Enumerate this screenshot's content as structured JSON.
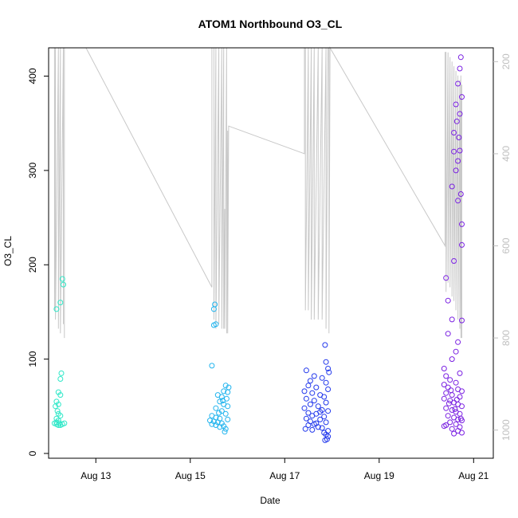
{
  "chart_data": {
    "type": "scatter",
    "title": "ATOM1 Northbound O3_CL",
    "xlabel": "Date",
    "ylabel": "O3_CL",
    "x_ticks": [
      "Aug 13",
      "Aug 15",
      "Aug 17",
      "Aug 19",
      "Aug 21"
    ],
    "xlim": [
      "2024-08-12",
      "2024-08-21"
    ],
    "y_ticks": [
      0,
      100,
      200,
      300,
      400
    ],
    "ylim": [
      0,
      430
    ],
    "y2_ticks": [
      200,
      400,
      600,
      800,
      1000
    ],
    "y2lim": [
      1030,
      170
    ],
    "y2_reversed": true,
    "grid": false,
    "legend": "none",
    "colors": {
      "cluster_1": "#2ee8c8",
      "cluster_2": "#21b4ee",
      "cluster_3": "#2238ec",
      "cluster_4": "#7a20e2",
      "secondary_line": "#c8c8c8"
    },
    "series": [
      {
        "values": [
          [
            "2024-08-12T04:00",
            153
          ],
          [
            "2024-08-12T06:00",
            160
          ],
          [
            "2024-08-12T07:00",
            185
          ],
          [
            "2024-08-12T07:30",
            179
          ],
          [
            "2024-08-12T06:30",
            85
          ],
          [
            "2024-08-12T06:00",
            79
          ],
          [
            "2024-08-12T05:00",
            65
          ],
          [
            "2024-08-12T06:00",
            62
          ],
          [
            "2024-08-12T04:00",
            55
          ],
          [
            "2024-08-12T05:00",
            52
          ],
          [
            "2024-08-12T03:30",
            50
          ],
          [
            "2024-08-12T04:30",
            45
          ],
          [
            "2024-08-12T05:00",
            42
          ],
          [
            "2024-08-12T06:00",
            40
          ],
          [
            "2024-08-12T04:00",
            37
          ],
          [
            "2024-08-12T05:00",
            35
          ],
          [
            "2024-08-12T04:00",
            33
          ],
          [
            "2024-08-12T05:30",
            32
          ],
          [
            "2024-08-12T04:00",
            31
          ],
          [
            "2024-08-12T06:00",
            30
          ],
          [
            "2024-08-12T07:00",
            31
          ],
          [
            "2024-08-12T08:00",
            32
          ],
          [
            "2024-08-12T03:00",
            32
          ],
          [
            "2024-08-12T05:00",
            30
          ]
        ]
      },
      {
        "values": [
          [
            "2024-08-15T12:30",
            158
          ],
          [
            "2024-08-15T12:00",
            153
          ],
          [
            "2024-08-15T13:00",
            137
          ],
          [
            "2024-08-15T12:00",
            136
          ],
          [
            "2024-08-15T11:00",
            93
          ],
          [
            "2024-08-15T18:00",
            72
          ],
          [
            "2024-08-15T19:30",
            70
          ],
          [
            "2024-08-15T17:00",
            66
          ],
          [
            "2024-08-15T19:00",
            65
          ],
          [
            "2024-08-15T14:00",
            62
          ],
          [
            "2024-08-15T16:00",
            60
          ],
          [
            "2024-08-15T18:30",
            58
          ],
          [
            "2024-08-15T15:00",
            55
          ],
          [
            "2024-08-15T17:00",
            52
          ],
          [
            "2024-08-15T19:00",
            50
          ],
          [
            "2024-08-15T13:00",
            48
          ],
          [
            "2024-08-15T16:00",
            45
          ],
          [
            "2024-08-15T18:00",
            42
          ],
          [
            "2024-08-15T11:00",
            40
          ],
          [
            "2024-08-15T13:00",
            38
          ],
          [
            "2024-08-15T15:00",
            37
          ],
          [
            "2024-08-15T19:00",
            36
          ],
          [
            "2024-08-15T10:00",
            35
          ],
          [
            "2024-08-15T12:00",
            34
          ],
          [
            "2024-08-15T14:00",
            33
          ],
          [
            "2024-08-15T16:00",
            32
          ],
          [
            "2024-08-15T11:00",
            31
          ],
          [
            "2024-08-15T13:00",
            30
          ],
          [
            "2024-08-15T17:00",
            29
          ],
          [
            "2024-08-15T18:00",
            26
          ],
          [
            "2024-08-15T17:30",
            23
          ],
          [
            "2024-08-15T15:00",
            28
          ],
          [
            "2024-08-15T14:30",
            43
          ],
          [
            "2024-08-15T16:30",
            56
          ]
        ]
      },
      {
        "values": [
          [
            "2024-08-17T20:30",
            115
          ],
          [
            "2024-08-17T21:00",
            97
          ],
          [
            "2024-08-17T22:00",
            90
          ],
          [
            "2024-08-17T11:00",
            88
          ],
          [
            "2024-08-17T22:30",
            86
          ],
          [
            "2024-08-17T15:00",
            82
          ],
          [
            "2024-08-17T19:00",
            80
          ],
          [
            "2024-08-17T13:00",
            77
          ],
          [
            "2024-08-17T21:00",
            75
          ],
          [
            "2024-08-17T12:00",
            72
          ],
          [
            "2024-08-17T16:00",
            70
          ],
          [
            "2024-08-17T22:00",
            68
          ],
          [
            "2024-08-17T10:00",
            66
          ],
          [
            "2024-08-17T14:00",
            64
          ],
          [
            "2024-08-17T18:00",
            62
          ],
          [
            "2024-08-17T20:00",
            60
          ],
          [
            "2024-08-17T11:00",
            58
          ],
          [
            "2024-08-17T15:00",
            56
          ],
          [
            "2024-08-17T21:00",
            54
          ],
          [
            "2024-08-17T13:00",
            52
          ],
          [
            "2024-08-17T17:00",
            50
          ],
          [
            "2024-08-17T10:00",
            48
          ],
          [
            "2024-08-17T19:00",
            46
          ],
          [
            "2024-08-17T22:00",
            45
          ],
          [
            "2024-08-17T12:00",
            43
          ],
          [
            "2024-08-17T16:00",
            42
          ],
          [
            "2024-08-17T14:00",
            40
          ],
          [
            "2024-08-17T20:00",
            39
          ],
          [
            "2024-08-17T11:00",
            37
          ],
          [
            "2024-08-17T18:00",
            36
          ],
          [
            "2024-08-17T13:00",
            34
          ],
          [
            "2024-08-17T21:00",
            33
          ],
          [
            "2024-08-17T15:00",
            31
          ],
          [
            "2024-08-17T12:00",
            30
          ],
          [
            "2024-08-17T17:00",
            28
          ],
          [
            "2024-08-17T19:00",
            27
          ],
          [
            "2024-08-17T14:00",
            25
          ],
          [
            "2024-08-17T22:00",
            24
          ],
          [
            "2024-08-17T20:00",
            22
          ],
          [
            "2024-08-17T21:00",
            20
          ],
          [
            "2024-08-17T22:00",
            18
          ],
          [
            "2024-08-17T21:30",
            15
          ],
          [
            "2024-08-17T20:30",
            14
          ],
          [
            "2024-08-17T16:00",
            32
          ],
          [
            "2024-08-17T18:00",
            44
          ],
          [
            "2024-08-17T10:30",
            26
          ]
        ]
      },
      {
        "values": [
          [
            "2024-08-20T17:30",
            420
          ],
          [
            "2024-08-20T17:00",
            408
          ],
          [
            "2024-08-20T16:00",
            392
          ],
          [
            "2024-08-20T15:00",
            370
          ],
          [
            "2024-08-20T18:00",
            378
          ],
          [
            "2024-08-20T17:00",
            360
          ],
          [
            "2024-08-20T15:30",
            352
          ],
          [
            "2024-08-20T14:00",
            340
          ],
          [
            "2024-08-20T16:30",
            335
          ],
          [
            "2024-08-20T14:00",
            320
          ],
          [
            "2024-08-20T17:00",
            321
          ],
          [
            "2024-08-20T16:00",
            310
          ],
          [
            "2024-08-20T15:00",
            300
          ],
          [
            "2024-08-20T13:00",
            283
          ],
          [
            "2024-08-20T17:30",
            275
          ],
          [
            "2024-08-20T16:00",
            268
          ],
          [
            "2024-08-20T18:00",
            243
          ],
          [
            "2024-08-20T18:00",
            221
          ],
          [
            "2024-08-20T14:00",
            204
          ],
          [
            "2024-08-20T10:00",
            186
          ],
          [
            "2024-08-20T11:00",
            162
          ],
          [
            "2024-08-20T13:00",
            142
          ],
          [
            "2024-08-20T18:00",
            141
          ],
          [
            "2024-08-20T11:00",
            127
          ],
          [
            "2024-08-20T16:00",
            118
          ],
          [
            "2024-08-20T15:00",
            108
          ],
          [
            "2024-08-20T13:00",
            100
          ],
          [
            "2024-08-20T09:00",
            90
          ],
          [
            "2024-08-20T17:00",
            85
          ],
          [
            "2024-08-20T10:00",
            82
          ],
          [
            "2024-08-20T12:00",
            78
          ],
          [
            "2024-08-20T15:00",
            75
          ],
          [
            "2024-08-20T09:00",
            73
          ],
          [
            "2024-08-20T11:00",
            70
          ],
          [
            "2024-08-20T16:00",
            68
          ],
          [
            "2024-08-20T18:00",
            66
          ],
          [
            "2024-08-20T10:00",
            64
          ],
          [
            "2024-08-20T13:00",
            62
          ],
          [
            "2024-08-20T17:00",
            60
          ],
          [
            "2024-08-20T09:00",
            58
          ],
          [
            "2024-08-20T12:00",
            56
          ],
          [
            "2024-08-20T14:00",
            54
          ],
          [
            "2024-08-20T16:00",
            52
          ],
          [
            "2024-08-20T18:00",
            50
          ],
          [
            "2024-08-20T10:00",
            48
          ],
          [
            "2024-08-20T13:00",
            46
          ],
          [
            "2024-08-20T15:00",
            44
          ],
          [
            "2024-08-20T17:00",
            42
          ],
          [
            "2024-08-20T11:00",
            40
          ],
          [
            "2024-08-20T14:00",
            38
          ],
          [
            "2024-08-20T16:00",
            36
          ],
          [
            "2024-08-20T18:00",
            35
          ],
          [
            "2024-08-20T12:00",
            33
          ],
          [
            "2024-08-20T15:00",
            31
          ],
          [
            "2024-08-20T09:00",
            29
          ],
          [
            "2024-08-20T17:00",
            28
          ],
          [
            "2024-08-20T13:00",
            26
          ],
          [
            "2024-08-20T16:00",
            24
          ],
          [
            "2024-08-20T18:00",
            22
          ],
          [
            "2024-08-20T14:00",
            21
          ],
          [
            "2024-08-20T10:00",
            30
          ],
          [
            "2024-08-20T11:30",
            53
          ],
          [
            "2024-08-20T12:30",
            67
          ],
          [
            "2024-08-20T14:30",
            47
          ],
          [
            "2024-08-20T15:30",
            57
          ],
          [
            "2024-08-20T17:30",
            37
          ]
        ]
      },
      {
        "axis": "right",
        "type": "line",
        "values": [
          [
            "2024-08-12T03:00",
            170
          ],
          [
            "2024-08-12T03:00",
            740
          ],
          [
            "2024-08-12T03:30",
            170
          ],
          [
            "2024-08-12T03:30",
            760
          ],
          [
            "2024-08-12T05:00",
            170
          ],
          [
            "2024-08-12T05:00",
            780
          ],
          [
            "2024-08-12T06:00",
            170
          ],
          [
            "2024-08-12T06:00",
            790
          ],
          [
            "2024-08-12T07:30",
            170
          ],
          [
            "2024-08-12T07:30",
            770
          ],
          [
            "2024-08-12T07:30",
            170
          ],
          [
            "2024-08-12T08:00",
            170
          ],
          [
            "2024-08-12T08:00",
            800
          ],
          [
            "2024-08-12T08:00",
            170
          ],
          [
            "2024-08-12T19:00",
            170
          ],
          [
            "2024-08-15T11:00",
            690
          ],
          [
            "2024-08-15T11:00",
            170
          ],
          [
            "2024-08-15T12:00",
            170
          ],
          [
            "2024-08-15T12:00",
            760
          ],
          [
            "2024-08-15T13:00",
            170
          ],
          [
            "2024-08-15T13:00",
            780
          ],
          [
            "2024-08-15T14:30",
            170
          ],
          [
            "2024-08-15T14:30",
            770
          ],
          [
            "2024-08-15T16:00",
            170
          ],
          [
            "2024-08-15T16:00",
            780
          ],
          [
            "2024-08-15T17:00",
            170
          ],
          [
            "2024-08-15T17:00",
            780
          ],
          [
            "2024-08-15T17:30",
            520
          ],
          [
            "2024-08-15T17:30",
            780
          ],
          [
            "2024-08-15T18:30",
            170
          ],
          [
            "2024-08-15T18:30",
            790
          ],
          [
            "2024-08-15T19:00",
            350
          ],
          [
            "2024-08-15T19:00",
            790
          ],
          [
            "2024-08-15T19:30",
            340
          ],
          [
            "2024-08-17T10:00",
            400
          ],
          [
            "2024-08-17T10:00",
            170
          ],
          [
            "2024-08-17T10:30",
            170
          ],
          [
            "2024-08-17T10:30",
            740
          ],
          [
            "2024-08-17T12:00",
            170
          ],
          [
            "2024-08-17T12:00",
            740
          ],
          [
            "2024-08-17T13:30",
            170
          ],
          [
            "2024-08-17T13:30",
            760
          ],
          [
            "2024-08-17T15:00",
            170
          ],
          [
            "2024-08-17T15:00",
            760
          ],
          [
            "2024-08-17T17:00",
            170
          ],
          [
            "2024-08-17T17:00",
            760
          ],
          [
            "2024-08-17T19:00",
            170
          ],
          [
            "2024-08-17T19:00",
            760
          ],
          [
            "2024-08-17T21:00",
            170
          ],
          [
            "2024-08-17T21:00",
            780
          ],
          [
            "2024-08-17T22:00",
            170
          ],
          [
            "2024-08-17T22:30",
            170
          ],
          [
            "2024-08-17T22:30",
            790
          ],
          [
            "2024-08-17T23:00",
            170
          ],
          [
            "2024-08-17T23:00",
            170
          ],
          [
            "2024-08-20T09:30",
            600
          ],
          [
            "2024-08-20T09:30",
            180
          ],
          [
            "2024-08-20T10:00",
            180
          ],
          [
            "2024-08-20T10:00",
            700
          ],
          [
            "2024-08-20T11:00",
            180
          ],
          [
            "2024-08-20T11:00",
            680
          ],
          [
            "2024-08-20T12:00",
            190
          ],
          [
            "2024-08-20T12:00",
            690
          ],
          [
            "2024-08-20T13:00",
            200
          ],
          [
            "2024-08-20T13:00",
            710
          ],
          [
            "2024-08-20T14:00",
            210
          ],
          [
            "2024-08-20T14:00",
            720
          ],
          [
            "2024-08-20T15:00",
            220
          ],
          [
            "2024-08-20T15:00",
            740
          ],
          [
            "2024-08-20T16:00",
            230
          ],
          [
            "2024-08-20T16:00",
            760
          ],
          [
            "2024-08-20T17:00",
            240
          ],
          [
            "2024-08-20T17:00",
            780
          ],
          [
            "2024-08-20T17:30",
            230
          ],
          [
            "2024-08-20T17:30",
            800
          ],
          [
            "2024-08-20T18:00",
            250
          ],
          [
            "2024-08-20T18:00",
            800
          ]
        ]
      }
    ]
  }
}
